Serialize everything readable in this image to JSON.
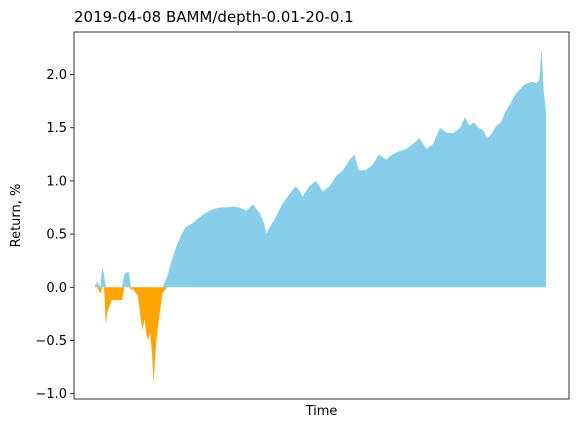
{
  "chart_data": {
    "type": "area",
    "title": "2019-04-08 BAMM/depth-0.01-20-0.1",
    "xlabel": "Time",
    "ylabel": "Return, %",
    "xlim": [
      0,
      1
    ],
    "ylim": [
      -1.05,
      2.4
    ],
    "yticks": [
      -1.0,
      -0.5,
      0.0,
      0.5,
      1.0,
      1.5,
      2.0
    ],
    "ytick_labels": [
      "−1.0",
      "−0.5",
      "0.0",
      "0.5",
      "1.0",
      "1.5",
      "2.0"
    ],
    "grid": false,
    "legend": "none",
    "colors": {
      "positive": "#87CEEB",
      "negative": "#FFA500"
    },
    "series": [
      {
        "x": [
          0.0,
          0.005,
          0.012,
          0.016,
          0.02,
          0.024,
          0.028,
          0.032,
          0.037,
          0.042,
          0.047,
          0.052,
          0.056,
          0.06,
          0.065,
          0.07,
          0.075,
          0.08,
          0.085,
          0.09,
          0.095,
          0.1,
          0.105,
          0.11,
          0.114,
          0.118,
          0.122,
          0.126,
          0.13,
          0.135,
          0.14,
          0.145,
          0.15,
          0.16,
          0.17,
          0.18,
          0.19,
          0.2,
          0.215,
          0.23,
          0.245,
          0.26,
          0.275,
          0.29,
          0.305,
          0.32,
          0.335,
          0.35,
          0.365,
          0.375,
          0.38,
          0.385,
          0.4,
          0.415,
          0.43,
          0.445,
          0.455,
          0.46,
          0.475,
          0.49,
          0.505,
          0.52,
          0.535,
          0.55,
          0.565,
          0.575,
          0.585,
          0.6,
          0.615,
          0.63,
          0.645,
          0.66,
          0.675,
          0.69,
          0.705,
          0.72,
          0.735,
          0.75,
          0.765,
          0.78,
          0.795,
          0.81,
          0.82,
          0.83,
          0.84,
          0.85,
          0.86,
          0.87,
          0.88,
          0.89,
          0.9,
          0.91,
          0.92,
          0.93,
          0.94,
          0.95,
          0.96,
          0.97,
          0.98,
          0.985,
          0.99,
          0.995,
          1.0
        ],
        "y": [
          0.02,
          0.05,
          -0.06,
          0.2,
          0.12,
          -0.35,
          -0.22,
          -0.18,
          -0.12,
          -0.12,
          -0.12,
          -0.12,
          -0.12,
          -0.12,
          0.12,
          0.14,
          0.14,
          -0.02,
          -0.02,
          -0.05,
          -0.08,
          -0.25,
          -0.4,
          -0.3,
          -0.45,
          -0.5,
          -0.42,
          -0.6,
          -0.9,
          -0.55,
          -0.35,
          -0.2,
          -0.05,
          0.1,
          0.25,
          0.38,
          0.48,
          0.56,
          0.6,
          0.65,
          0.7,
          0.73,
          0.75,
          0.75,
          0.76,
          0.75,
          0.72,
          0.78,
          0.7,
          0.6,
          0.5,
          0.55,
          0.65,
          0.78,
          0.87,
          0.95,
          0.9,
          0.85,
          0.95,
          1.0,
          0.9,
          0.95,
          1.05,
          1.1,
          1.2,
          1.25,
          1.1,
          1.1,
          1.15,
          1.25,
          1.2,
          1.25,
          1.28,
          1.3,
          1.35,
          1.4,
          1.3,
          1.35,
          1.5,
          1.45,
          1.45,
          1.5,
          1.6,
          1.52,
          1.55,
          1.5,
          1.48,
          1.4,
          1.45,
          1.52,
          1.55,
          1.65,
          1.72,
          1.8,
          1.85,
          1.9,
          1.92,
          1.93,
          1.92,
          1.95,
          2.25,
          1.85,
          1.65
        ]
      }
    ]
  }
}
